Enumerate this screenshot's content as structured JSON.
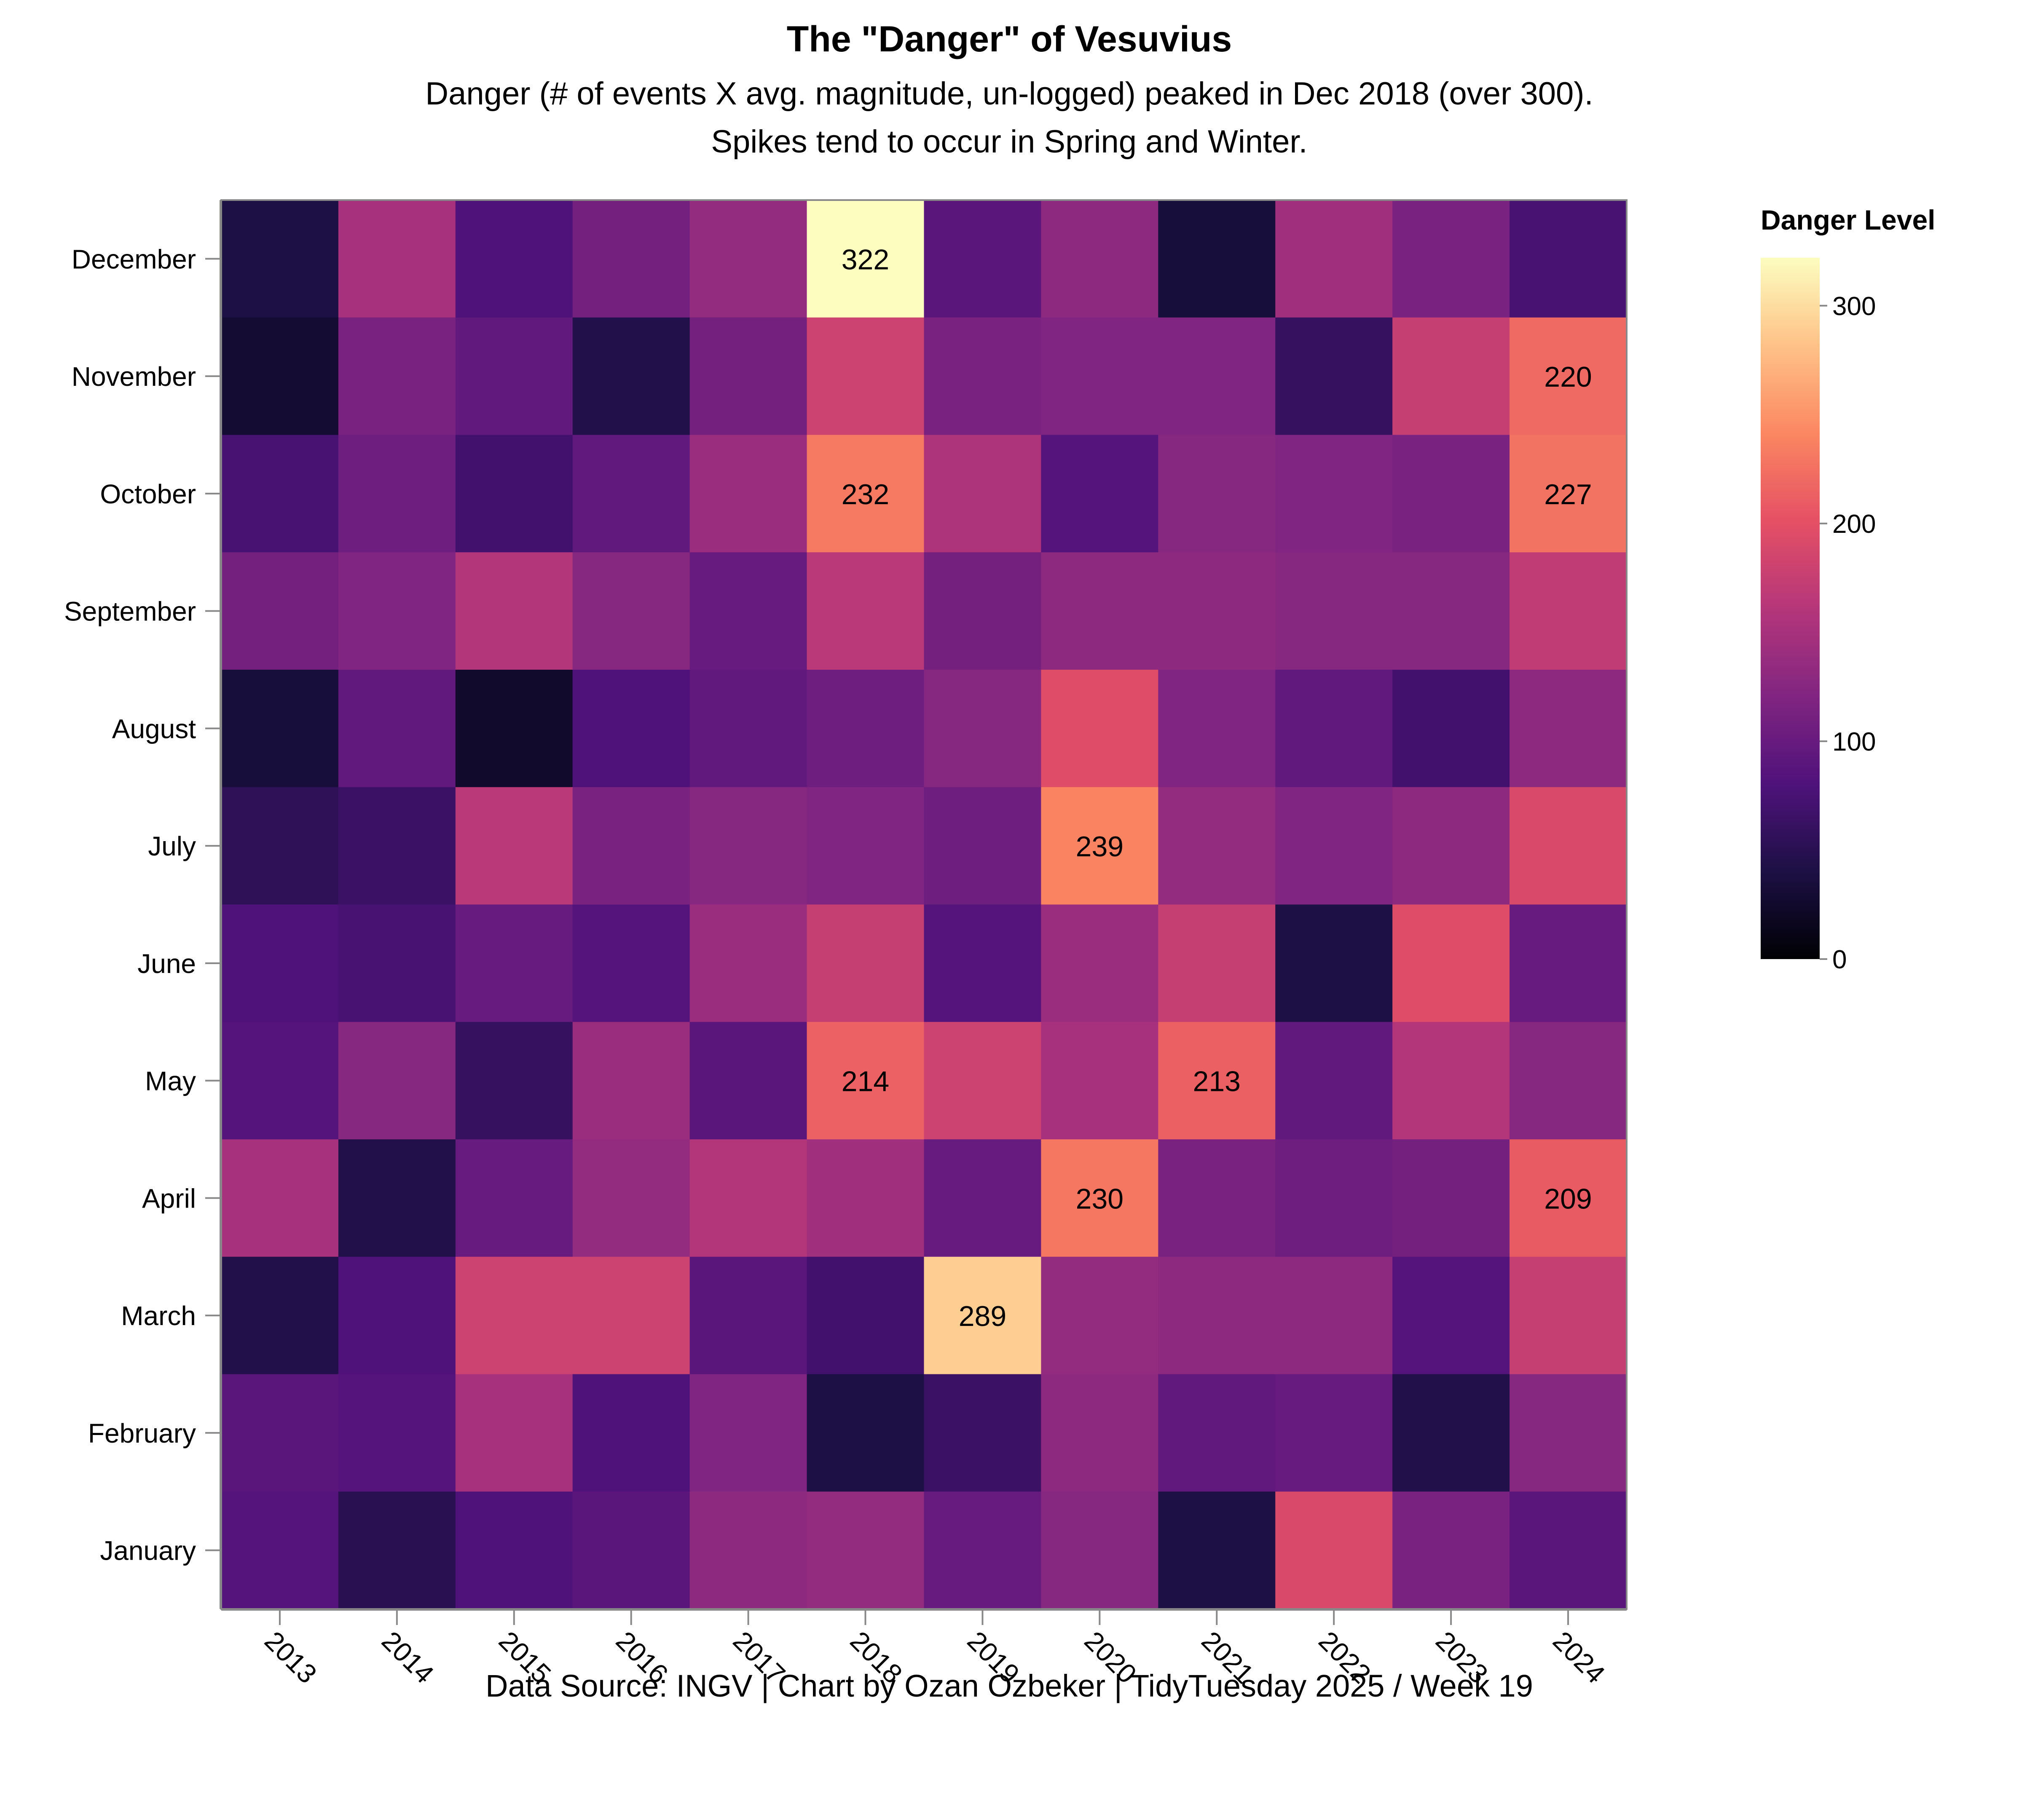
{
  "chart_data": {
    "type": "heatmap",
    "title": "The \"Danger\" of Vesuvius",
    "subtitle": [
      "Danger (# of events X avg. magnitude, un-logged) peaked in Dec 2018 (over 300).",
      "Spikes tend to occur in Spring and Winter."
    ],
    "caption": "Data Source: INGV | Chart by Ozan Ozbeker | TidyTuesday 2025 / Week 19",
    "x_categories": [
      "2013",
      "2014",
      "2015",
      "2016",
      "2017",
      "2018",
      "2019",
      "2020",
      "2021",
      "2022",
      "2023",
      "2024"
    ],
    "y_categories": [
      "December",
      "November",
      "October",
      "September",
      "August",
      "July",
      "June",
      "May",
      "April",
      "March",
      "February",
      "January"
    ],
    "values": [
      [
        40,
        150,
        80,
        110,
        135,
        322,
        90,
        130,
        35,
        145,
        115,
        75
      ],
      [
        30,
        115,
        95,
        45,
        110,
        180,
        115,
        120,
        120,
        60,
        175,
        220
      ],
      [
        75,
        105,
        70,
        95,
        140,
        232,
        155,
        85,
        125,
        120,
        115,
        227
      ],
      [
        110,
        120,
        160,
        125,
        100,
        165,
        110,
        130,
        130,
        125,
        125,
        170
      ],
      [
        35,
        95,
        25,
        80,
        95,
        105,
        125,
        195,
        120,
        95,
        70,
        130
      ],
      [
        55,
        65,
        165,
        115,
        125,
        120,
        105,
        239,
        135,
        120,
        130,
        190
      ],
      [
        80,
        75,
        100,
        85,
        140,
        175,
        85,
        140,
        175,
        40,
        195,
        100
      ],
      [
        85,
        125,
        60,
        140,
        90,
        214,
        180,
        150,
        213,
        95,
        160,
        125
      ],
      [
        150,
        45,
        100,
        135,
        160,
        145,
        100,
        230,
        115,
        105,
        110,
        209
      ],
      [
        45,
        80,
        180,
        180,
        90,
        70,
        289,
        135,
        130,
        130,
        85,
        175
      ],
      [
        90,
        85,
        150,
        80,
        120,
        40,
        65,
        130,
        95,
        100,
        45,
        125
      ],
      [
        85,
        50,
        80,
        90,
        130,
        135,
        100,
        125,
        40,
        190,
        115,
        90
      ]
    ],
    "label_threshold": 200,
    "colorbar": {
      "title": "Danger Level",
      "domain": [
        0,
        322
      ],
      "ticks": [
        0,
        100,
        200,
        300
      ],
      "scheme": "magma"
    },
    "colors": {
      "magma": [
        "#000004",
        "#1c1044",
        "#4f127b",
        "#812581",
        "#b5367a",
        "#e55064",
        "#fb8761",
        "#fec287",
        "#fcfdbf"
      ]
    }
  }
}
